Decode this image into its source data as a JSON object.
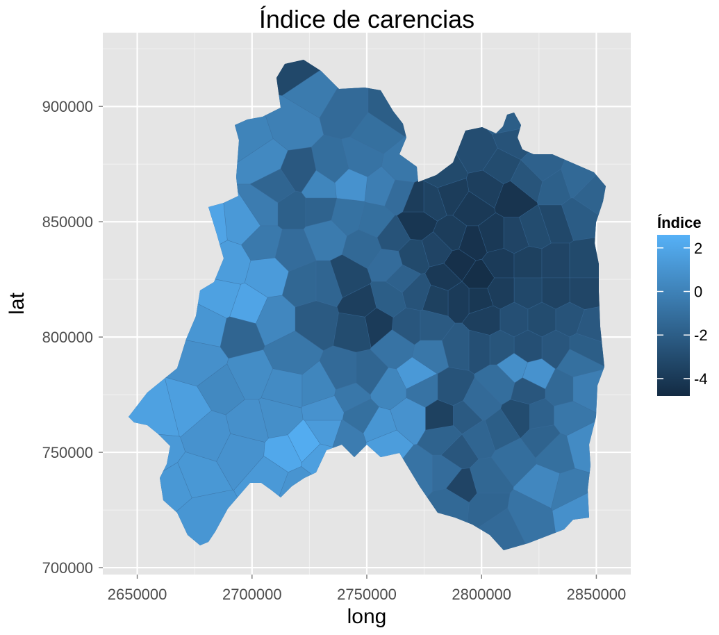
{
  "chart_data": {
    "type": "choropleth",
    "title": "Índice de carencias",
    "xlabel": "long",
    "ylabel": "lat",
    "xlim": [
      2635000,
      2865000
    ],
    "ylim": [
      697000,
      932000
    ],
    "x_ticks": [
      2650000,
      2700000,
      2750000,
      2800000,
      2850000
    ],
    "x_tick_labels": [
      "2650000",
      "2700000",
      "2750000",
      "2800000",
      "2850000"
    ],
    "y_ticks": [
      700000,
      750000,
      800000,
      850000,
      900000
    ],
    "y_tick_labels": [
      "700000",
      "750000",
      "800000",
      "850000",
      "900000"
    ],
    "grid": true,
    "legend": {
      "title": "Índice",
      "position": "right",
      "range": [
        -4.8,
        2.6
      ],
      "ticks": [
        2,
        0,
        -2,
        -4
      ],
      "tick_labels": [
        "2",
        "0",
        "-2",
        "-4"
      ],
      "low_color": "#132b43",
      "high_color": "#56b1f7"
    },
    "panel_background": "#e5e5e5"
  }
}
